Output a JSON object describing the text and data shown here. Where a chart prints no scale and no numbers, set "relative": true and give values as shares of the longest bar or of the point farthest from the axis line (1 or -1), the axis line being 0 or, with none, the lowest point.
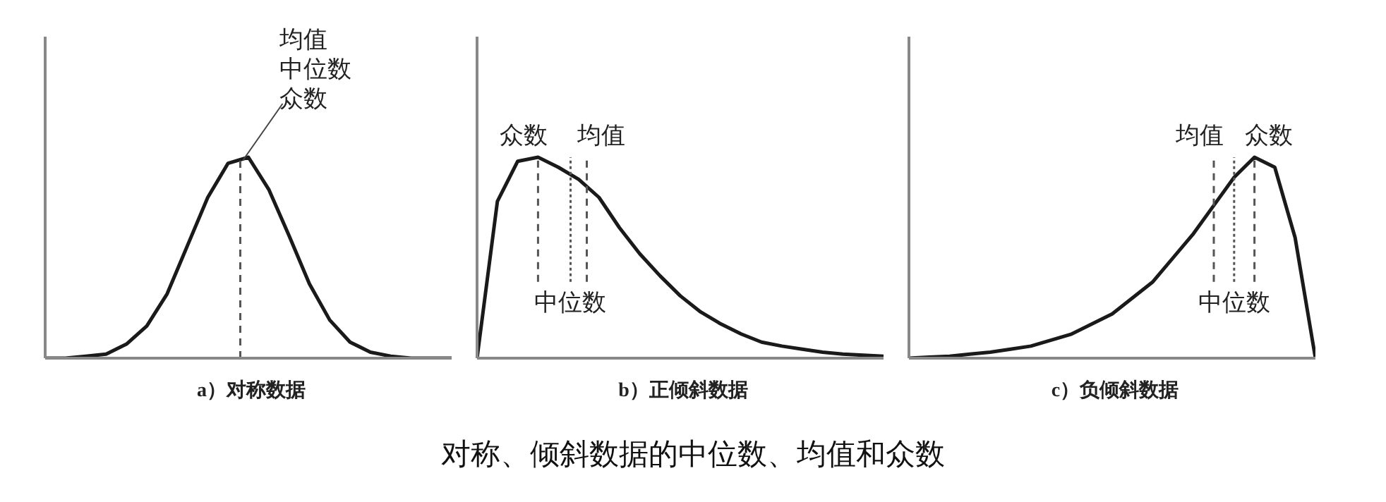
{
  "chart_data": [
    {
      "type": "line",
      "xlabel": "a）对称数据",
      "relative": true,
      "line_style": "solid",
      "categories": [
        null,
        null,
        null,
        null,
        null,
        null,
        null,
        null,
        null,
        null,
        null,
        null,
        null,
        null,
        null,
        null,
        null,
        null,
        null,
        null,
        null
      ],
      "series": [
        {
          "color": "#1a1a1a",
          "values": [
            0,
            0,
            0.01,
            0.02,
            0.07,
            0.16,
            0.32,
            0.56,
            0.8,
            0.97,
            1,
            0.84,
            0.61,
            0.37,
            0.19,
            0.08,
            0.03,
            0.01,
            0,
            0,
            0
          ]
        }
      ],
      "annotations": [
        "均值",
        "中位数",
        "众数"
      ]
    },
    {
      "type": "line",
      "xlabel": "b）正倾斜数据",
      "title": "对称、倾斜数据的中位数、均值和众数",
      "relative": true,
      "line_style": "solid",
      "categories": [
        null,
        null,
        null,
        null,
        null,
        null,
        null,
        null,
        null,
        null,
        null,
        null,
        null,
        null,
        null,
        null,
        null,
        null,
        null,
        null,
        null
      ],
      "series": [
        {
          "color": "#1a1a1a",
          "values": [
            0,
            0.78,
            0.98,
            1,
            0.95,
            0.89,
            0.8,
            0.65,
            0.52,
            0.41,
            0.31,
            0.23,
            0.17,
            0.12,
            0.08,
            0.06,
            0.045,
            0.03,
            0.02,
            0.015,
            0.01
          ]
        }
      ],
      "annotations": [
        "众数",
        "中位数",
        "均值"
      ]
    },
    {
      "type": "line",
      "xlabel": "c）负倾斜数据",
      "relative": true,
      "line_style": "solid",
      "categories": [
        null,
        null,
        null,
        null,
        null,
        null,
        null,
        null,
        null,
        null,
        null,
        null,
        null,
        null,
        null,
        null,
        null,
        null,
        null,
        null,
        null
      ],
      "series": [
        {
          "color": "#1a1a1a",
          "values": [
            0,
            0.005,
            0.01,
            0.02,
            0.03,
            0.045,
            0.06,
            0.09,
            0.12,
            0.17,
            0.22,
            0.3,
            0.38,
            0.5,
            0.62,
            0.76,
            0.9,
            1,
            0.95,
            0.6,
            0
          ]
        }
      ],
      "annotations": [
        "均值",
        "中位数",
        "众数"
      ]
    }
  ]
}
